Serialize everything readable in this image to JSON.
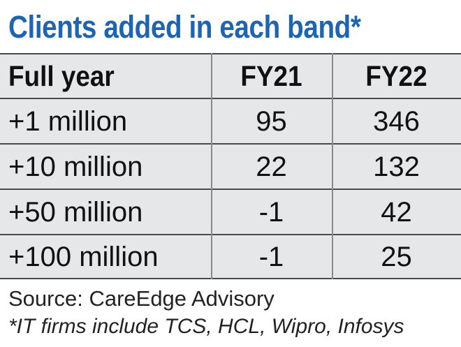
{
  "chart_data": {
    "type": "table",
    "title": "Clients added in each band*",
    "columns": [
      "Full year",
      "FY21",
      "FY22"
    ],
    "rows": [
      [
        "+1 million",
        "95",
        "346"
      ],
      [
        "+10 million",
        "22",
        "132"
      ],
      [
        "+50 million",
        "-1",
        "42"
      ],
      [
        "+100 million",
        "-1",
        "25"
      ]
    ],
    "source": "Source: CareEdge Advisory",
    "footnote": "*IT firms include TCS, HCL, Wipro, Infosys"
  },
  "colors": {
    "title": "#1f64b0",
    "table_background": "#e6e7e8",
    "rule": "#4a4a4a"
  }
}
